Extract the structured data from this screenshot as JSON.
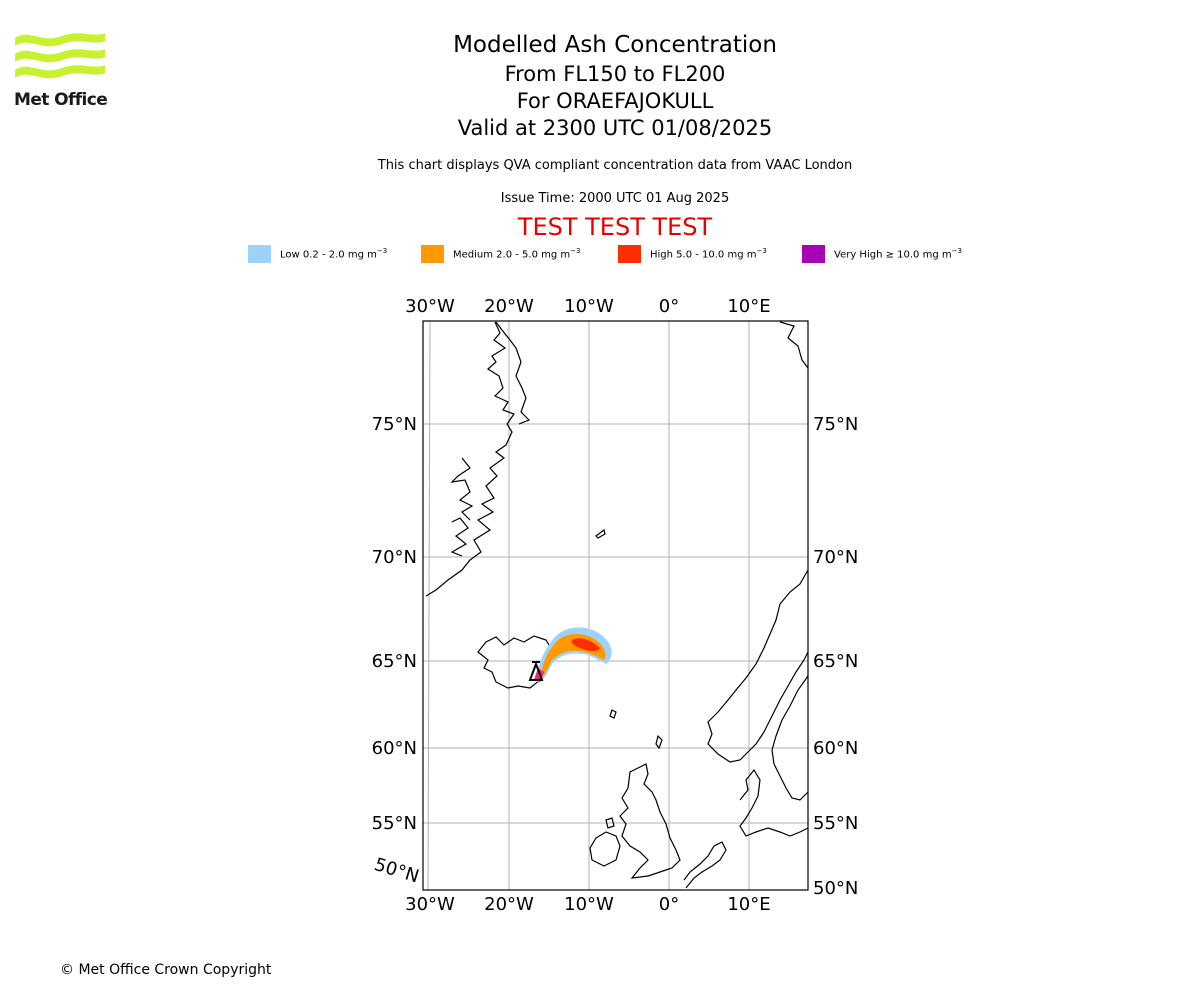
{
  "logo": {
    "text": "Met Office",
    "color": "#c8f231"
  },
  "title": "Modelled Ash Concentration",
  "level": "From FL150 to FL200",
  "volcano": "For ORAEFAJOKULL",
  "valid": "Valid at 2300 UTC 01/08/2025",
  "description": "This chart displays QVA compliant concentration data from VAAC London",
  "issue_time": "Issue Time: 2000 UTC 01 Aug 2025",
  "test_banner": "TEST TEST TEST",
  "legend": [
    {
      "label": "Low 0.2 - 2.0 mg m",
      "color": "#9dd3fb"
    },
    {
      "label": "Medium 2.0 - 5.0 mg m",
      "color": "#ff9900"
    },
    {
      "label": "High 5.0 - 10.0 mg m",
      "color": "#ff2e00"
    },
    {
      "label": "Very High ≥ 10.0 mg m",
      "color": "#a800b4"
    }
  ],
  "unit_exponent": "−3",
  "map": {
    "lon_ticks": [
      "30°W",
      "20°W",
      "10°W",
      "0°",
      "10°E"
    ],
    "lat_ticks_left": [
      "75°N",
      "70°N",
      "65°N",
      "60°N",
      "55°N",
      "50°N"
    ],
    "lat_ticks_right": [
      "75°N",
      "70°N",
      "65°N",
      "60°N",
      "55°N",
      "50°N"
    ]
  },
  "copyright": "© Met Office Crown Copyright"
}
